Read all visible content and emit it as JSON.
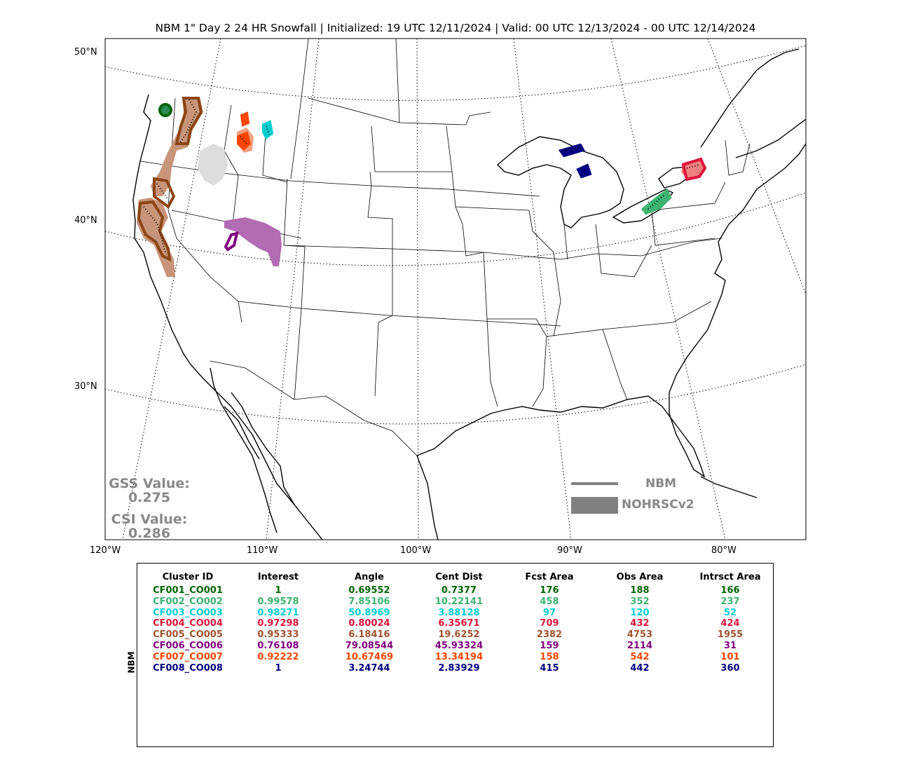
{
  "title": "NBM 1\" Day 2 24 HR Snowfall | Initialized: 19 UTC 12/11/2024 | Valid: 00 UTC 12/13/2024 - 00 UTC 12/14/2024",
  "lat_labels": [
    "50°N",
    "40°N",
    "30°N"
  ],
  "lon_labels": [
    "120°W",
    "110°W",
    "100°W",
    "90°W",
    "80°W"
  ],
  "stats": {
    "gss_label": "GSS Value:",
    "gss_value": "0.275",
    "csi_label": "CSI Value:",
    "csi_value": "0.286"
  },
  "legend": {
    "nbm": "NBM",
    "obs": "NOHRSCv2",
    "color": "#808080"
  },
  "table": {
    "side_label": "NBM",
    "headers": [
      "Cluster ID",
      "Interest",
      "Angle",
      "Cent Dist",
      "Fcst Area",
      "Obs Area",
      "Intrsct Area"
    ],
    "rows": [
      {
        "color": "#006400",
        "cells": [
          "CF001_CO001",
          "1",
          "0.69552",
          "0.7377",
          "176",
          "188",
          "166"
        ]
      },
      {
        "color": "#3CB371",
        "cells": [
          "CF002_CO002",
          "0.99578",
          "7.85106",
          "10.22141",
          "458",
          "352",
          "237"
        ]
      },
      {
        "color": "#00CED1",
        "cells": [
          "CF003_CO003",
          "0.98271",
          "50.8969",
          "3.88128",
          "97",
          "120",
          "52"
        ]
      },
      {
        "color": "#DC143C",
        "cells": [
          "CF004_CO004",
          "0.97298",
          "0.80024",
          "6.35671",
          "709",
          "432",
          "424"
        ]
      },
      {
        "color": "#A0522D",
        "cells": [
          "CF005_CO005",
          "0.95333",
          "6.18416",
          "19.6252",
          "2382",
          "4753",
          "1955"
        ]
      },
      {
        "color": "#800080",
        "cells": [
          "CF006_CO006",
          "0.76108",
          "79.08544",
          "45.93324",
          "159",
          "2114",
          "31"
        ]
      },
      {
        "color": "#FF4500",
        "cells": [
          "CF007_CO007",
          "0.92222",
          "10.67469",
          "13.34194",
          "158",
          "542",
          "101"
        ]
      },
      {
        "color": "#000080",
        "cells": [
          "CF008_CO008",
          "1",
          "3.24744",
          "2.83929",
          "415",
          "442",
          "360"
        ]
      }
    ]
  },
  "clusters": [
    {
      "id": "CF001_CO001",
      "color": "#006400",
      "obs_color": "#006400"
    },
    {
      "id": "CF002_CO002",
      "color": "#3CB371",
      "obs_color": "#3CB371"
    },
    {
      "id": "CF003_CO003",
      "color": "#00CED1",
      "obs_color": "#00CED1"
    },
    {
      "id": "CF004_CO004",
      "color": "#DC143C",
      "obs_color": "#F08080"
    },
    {
      "id": "CF005_CO005",
      "color": "#8B4513",
      "obs_color": "#C8957A"
    },
    {
      "id": "CF006_CO006",
      "color": "#800080",
      "obs_color": "#B36BB3"
    },
    {
      "id": "CF007_CO007",
      "color": "#FF4500",
      "obs_color": "#F4A07F"
    },
    {
      "id": "CF008_CO008",
      "color": "#000080",
      "obs_color": "#3A3A9A"
    },
    {
      "id": "unmatched",
      "color": "#DDDDDD",
      "obs_color": "#DDDDDD"
    }
  ]
}
